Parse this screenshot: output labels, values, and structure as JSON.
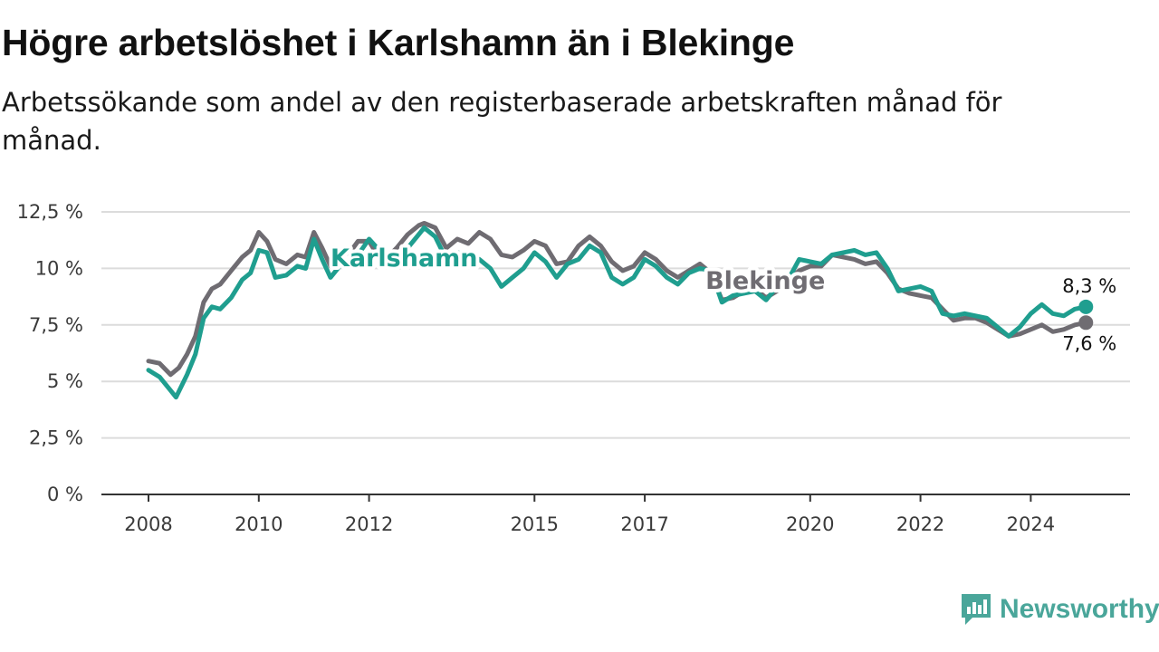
{
  "header": {
    "title": "Högre arbetslöshet i Karlshamn än i Blekinge",
    "subtitle": "Arbetssökande som andel av den registerbaserade arbetskraften månad för månad."
  },
  "brand": {
    "name": "Newsworthy",
    "color": "#4aa69a"
  },
  "chart_data": {
    "type": "line",
    "title": "Högre arbetslöshet i Karlshamn än i Blekinge",
    "subtitle": "Arbetssökande som andel av den registerbaserade arbetskraften månad för månad.",
    "ylim": [
      0,
      12.5
    ],
    "xlim": [
      2008,
      2025.8
    ],
    "y_ticks": [
      0,
      2.5,
      5,
      7.5,
      10,
      12.5
    ],
    "y_tick_labels": [
      "0 %",
      "2,5 %",
      "5 %",
      "7,5 %",
      "10 %",
      "12,5 %"
    ],
    "x_ticks": [
      2008,
      2010,
      2012,
      2015,
      2017,
      2020,
      2022,
      2024
    ],
    "x_tick_labels": [
      "2008",
      "2010",
      "2012",
      "2015",
      "2017",
      "2020",
      "2022",
      "2024"
    ],
    "grid": true,
    "legend": "inline labels",
    "series": [
      {
        "name": "Blekinge",
        "color": "#6f6c72",
        "end_label": "7,6 %",
        "x": [
          2008.0,
          2008.2,
          2008.4,
          2008.55,
          2008.7,
          2008.85,
          2009.0,
          2009.15,
          2009.3,
          2009.5,
          2009.7,
          2009.85,
          2010.0,
          2010.15,
          2010.3,
          2010.5,
          2010.7,
          2010.85,
          2011.0,
          2011.15,
          2011.3,
          2011.5,
          2011.65,
          2011.8,
          2012.0,
          2012.15,
          2012.3,
          2012.5,
          2012.7,
          2012.9,
          2013.0,
          2013.2,
          2013.4,
          2013.6,
          2013.8,
          2014.0,
          2014.2,
          2014.4,
          2014.6,
          2014.8,
          2015.0,
          2015.2,
          2015.4,
          2015.6,
          2015.8,
          2016.0,
          2016.2,
          2016.4,
          2016.6,
          2016.8,
          2017.0,
          2017.2,
          2017.4,
          2017.6,
          2017.8,
          2018.0,
          2018.2,
          2018.4,
          2018.6,
          2018.8,
          2019.0,
          2019.2,
          2019.4,
          2019.6,
          2019.8,
          2020.0,
          2020.2,
          2020.4,
          2020.6,
          2020.8,
          2021.0,
          2021.2,
          2021.4,
          2021.6,
          2021.8,
          2022.0,
          2022.2,
          2022.4,
          2022.6,
          2022.8,
          2023.0,
          2023.2,
          2023.4,
          2023.6,
          2023.8,
          2024.0,
          2024.2,
          2024.4,
          2024.6,
          2024.8,
          2025.0
        ],
        "y": [
          5.9,
          5.8,
          5.3,
          5.6,
          6.2,
          7.0,
          8.5,
          9.1,
          9.3,
          9.9,
          10.5,
          10.8,
          11.6,
          11.2,
          10.4,
          10.2,
          10.6,
          10.5,
          11.6,
          10.9,
          10.1,
          10.6,
          10.7,
          11.2,
          11.2,
          10.6,
          10.4,
          10.9,
          11.5,
          11.9,
          12.0,
          11.8,
          10.9,
          11.3,
          11.1,
          11.6,
          11.3,
          10.6,
          10.5,
          10.8,
          11.2,
          11.0,
          10.2,
          10.3,
          11.0,
          11.4,
          11.0,
          10.3,
          9.9,
          10.1,
          10.7,
          10.4,
          9.9,
          9.6,
          9.9,
          10.2,
          9.8,
          8.6,
          8.7,
          9.0,
          9.1,
          8.7,
          9.0,
          9.5,
          9.9,
          10.1,
          10.1,
          10.6,
          10.5,
          10.4,
          10.2,
          10.3,
          9.8,
          9.1,
          8.9,
          8.8,
          8.7,
          8.2,
          7.7,
          7.8,
          7.8,
          7.6,
          7.3,
          7.0,
          7.1,
          7.3,
          7.5,
          7.2,
          7.3,
          7.5,
          7.6
        ]
      },
      {
        "name": "Karlshamn",
        "color": "#1f9e8f",
        "end_label": "8,3 %",
        "x": [
          2008.0,
          2008.2,
          2008.4,
          2008.5,
          2008.7,
          2008.85,
          2009.0,
          2009.15,
          2009.3,
          2009.5,
          2009.7,
          2009.85,
          2010.0,
          2010.15,
          2010.3,
          2010.5,
          2010.7,
          2010.85,
          2011.0,
          2011.15,
          2011.3,
          2011.5,
          2011.65,
          2011.8,
          2012.0,
          2012.15,
          2012.3,
          2012.5,
          2012.7,
          2012.9,
          2013.0,
          2013.2,
          2013.4,
          2013.6,
          2013.8,
          2014.0,
          2014.2,
          2014.4,
          2014.6,
          2014.8,
          2015.0,
          2015.2,
          2015.4,
          2015.6,
          2015.8,
          2016.0,
          2016.2,
          2016.4,
          2016.6,
          2016.8,
          2017.0,
          2017.2,
          2017.4,
          2017.6,
          2017.8,
          2018.0,
          2018.2,
          2018.4,
          2018.6,
          2018.8,
          2019.0,
          2019.2,
          2019.4,
          2019.6,
          2019.8,
          2020.0,
          2020.2,
          2020.4,
          2020.6,
          2020.8,
          2021.0,
          2021.2,
          2021.4,
          2021.6,
          2021.8,
          2022.0,
          2022.2,
          2022.4,
          2022.6,
          2022.8,
          2023.0,
          2023.2,
          2023.4,
          2023.6,
          2023.8,
          2024.0,
          2024.2,
          2024.4,
          2024.6,
          2024.8,
          2025.0
        ],
        "y": [
          5.5,
          5.2,
          4.6,
          4.3,
          5.3,
          6.2,
          7.8,
          8.3,
          8.2,
          8.7,
          9.5,
          9.8,
          10.8,
          10.7,
          9.6,
          9.7,
          10.1,
          10.0,
          11.3,
          10.4,
          9.6,
          10.2,
          10.3,
          10.6,
          11.3,
          10.9,
          10.2,
          10.6,
          10.9,
          11.5,
          11.8,
          11.4,
          10.4,
          10.7,
          10.6,
          10.4,
          10.0,
          9.2,
          9.6,
          10.0,
          10.7,
          10.3,
          9.6,
          10.2,
          10.4,
          11.0,
          10.7,
          9.6,
          9.3,
          9.6,
          10.4,
          10.1,
          9.6,
          9.3,
          9.8,
          10.0,
          9.9,
          8.5,
          8.8,
          8.9,
          9.0,
          8.6,
          9.2,
          9.5,
          10.4,
          10.3,
          10.2,
          10.6,
          10.7,
          10.8,
          10.6,
          10.7,
          10.0,
          9.0,
          9.1,
          9.2,
          9.0,
          8.0,
          7.9,
          8.0,
          7.9,
          7.8,
          7.4,
          7.0,
          7.4,
          8.0,
          8.4,
          8.0,
          7.9,
          8.2,
          8.3
        ]
      }
    ]
  }
}
